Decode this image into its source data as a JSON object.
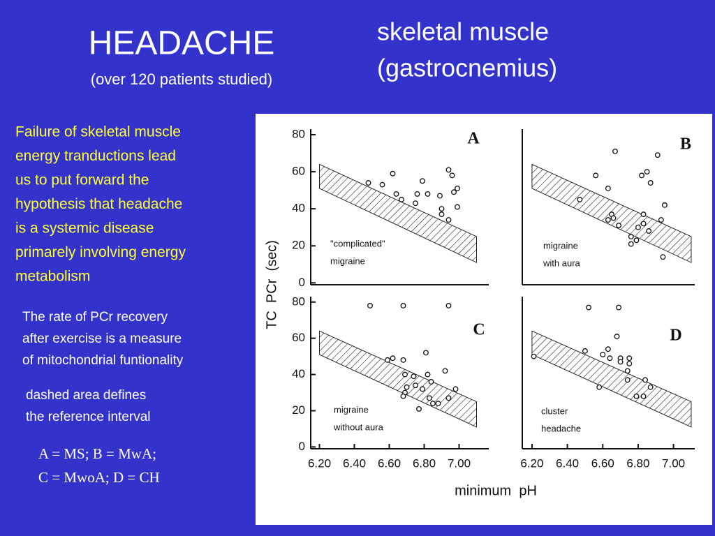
{
  "header": {
    "title": "HEADACHE",
    "subtitle": "(over 120 patients studied)",
    "tissue": [
      "skeletal muscle",
      "(gastrocnemius)"
    ]
  },
  "hypothesis": [
    "Failure of skeletal muscle",
    "energy tranductions lead",
    "us to put forward the",
    "hypothesis that headache",
    "is a systemic disease",
    "primarely involving energy",
    "metabolism"
  ],
  "note": [
    "The rate of PCr recovery",
    "after exercise is a measure",
    "of mitochondrial funtionality"
  ],
  "band_note": [
    "dashed area defines",
    "the reference interval"
  ],
  "legend": [
    "A = MS;      B = MwA;",
    "C = MwoA; D = CH"
  ],
  "figure": {
    "y_label": "TC  PCr  (sec)",
    "x_label": "minimum  pH"
  },
  "chart_data": [
    {
      "type": "scatter",
      "label": "A",
      "annotation": [
        "\"complicated\"",
        "migraine"
      ],
      "x": [
        6.48,
        6.56,
        6.62,
        6.64,
        6.67,
        6.75,
        6.76,
        6.79,
        6.82,
        6.89,
        6.9,
        6.9,
        6.94,
        6.96,
        6.97,
        6.99,
        6.99,
        6.94
      ],
      "y": [
        54,
        53,
        59,
        48,
        45,
        43,
        48,
        55,
        48,
        47,
        40,
        37,
        61,
        58,
        49,
        51,
        41,
        34
      ],
      "band": {
        "x": [
          6.2,
          7.1
        ],
        "upper": [
          64,
          25
        ],
        "lower": [
          51,
          11
        ]
      },
      "xlim": [
        6.15,
        7.17
      ],
      "ylim": [
        -1,
        83
      ],
      "yticks": [
        0,
        20,
        40,
        60,
        80
      ]
    },
    {
      "type": "scatter",
      "label": "B",
      "annotation": [
        "migraine",
        "with aura"
      ],
      "x": [
        6.67,
        6.91,
        6.56,
        6.63,
        6.47,
        6.82,
        6.85,
        6.87,
        6.95,
        6.93,
        6.65,
        6.66,
        6.63,
        6.69,
        6.83,
        6.8,
        6.83,
        6.86,
        6.76,
        6.79,
        6.76,
        6.94
      ],
      "y": [
        71,
        69,
        58,
        51,
        45,
        58,
        60,
        54,
        42,
        34,
        37,
        35,
        34,
        31,
        37,
        30,
        32,
        28,
        25,
        23,
        21,
        14
      ],
      "band": {
        "x": [
          6.2,
          7.1
        ],
        "upper": [
          64,
          25
        ],
        "lower": [
          51,
          11
        ]
      },
      "xlim": [
        6.145,
        7.12
      ],
      "ylim": [
        -1,
        83
      ]
    },
    {
      "type": "scatter",
      "label": "C",
      "annotation": [
        "migraine",
        "without aura"
      ],
      "x": [
        6.49,
        6.68,
        6.94,
        6.59,
        6.62,
        6.68,
        6.81,
        6.69,
        6.74,
        6.7,
        6.75,
        6.69,
        6.68,
        6.79,
        6.82,
        6.84,
        6.92,
        6.98,
        6.94,
        6.83,
        6.85,
        6.88,
        6.77
      ],
      "y": [
        78,
        78,
        78,
        48,
        49,
        48,
        52,
        40,
        39,
        33,
        34,
        30,
        28,
        32,
        40,
        36,
        42,
        32,
        27,
        27,
        24,
        24,
        21
      ],
      "band": {
        "x": [
          6.2,
          7.1
        ],
        "upper": [
          64,
          25
        ],
        "lower": [
          51,
          11
        ]
      },
      "xlim": [
        6.15,
        7.17
      ],
      "ylim": [
        -1,
        83
      ],
      "xticks": [
        {
          "value": 6.2,
          "label": "6.20"
        },
        {
          "value": 6.4,
          "label": "6.40"
        },
        {
          "value": 6.6,
          "label": "6.60"
        },
        {
          "value": 6.8,
          "label": "6.80"
        },
        {
          "value": 7,
          "label": "7.00"
        }
      ],
      "yticks": [
        0,
        20,
        40,
        60,
        80
      ]
    },
    {
      "type": "scatter",
      "label": "D",
      "annotation": [
        "cluster",
        "headache"
      ],
      "x": [
        6.21,
        6.52,
        6.69,
        6.68,
        6.5,
        6.6,
        6.63,
        6.64,
        6.7,
        6.7,
        6.75,
        6.75,
        6.74,
        6.58,
        6.74,
        6.84,
        6.87,
        6.79,
        6.83
      ],
      "y": [
        50,
        77,
        77,
        61,
        53,
        51,
        54,
        49,
        49,
        47,
        49,
        46,
        42,
        33,
        37,
        37,
        33,
        28,
        28
      ],
      "band": {
        "x": [
          6.2,
          7.1
        ],
        "upper": [
          64,
          25
        ],
        "lower": [
          51,
          11
        ]
      },
      "xlim": [
        6.145,
        7.12
      ],
      "ylim": [
        -1,
        83
      ],
      "xticks": [
        {
          "value": 6.2,
          "label": "6.20"
        },
        {
          "value": 6.4,
          "label": "6.40"
        },
        {
          "value": 6.6,
          "label": "6.60"
        },
        {
          "value": 6.8,
          "label": "6.80"
        },
        {
          "value": 7,
          "label": "7.00"
        }
      ]
    }
  ]
}
